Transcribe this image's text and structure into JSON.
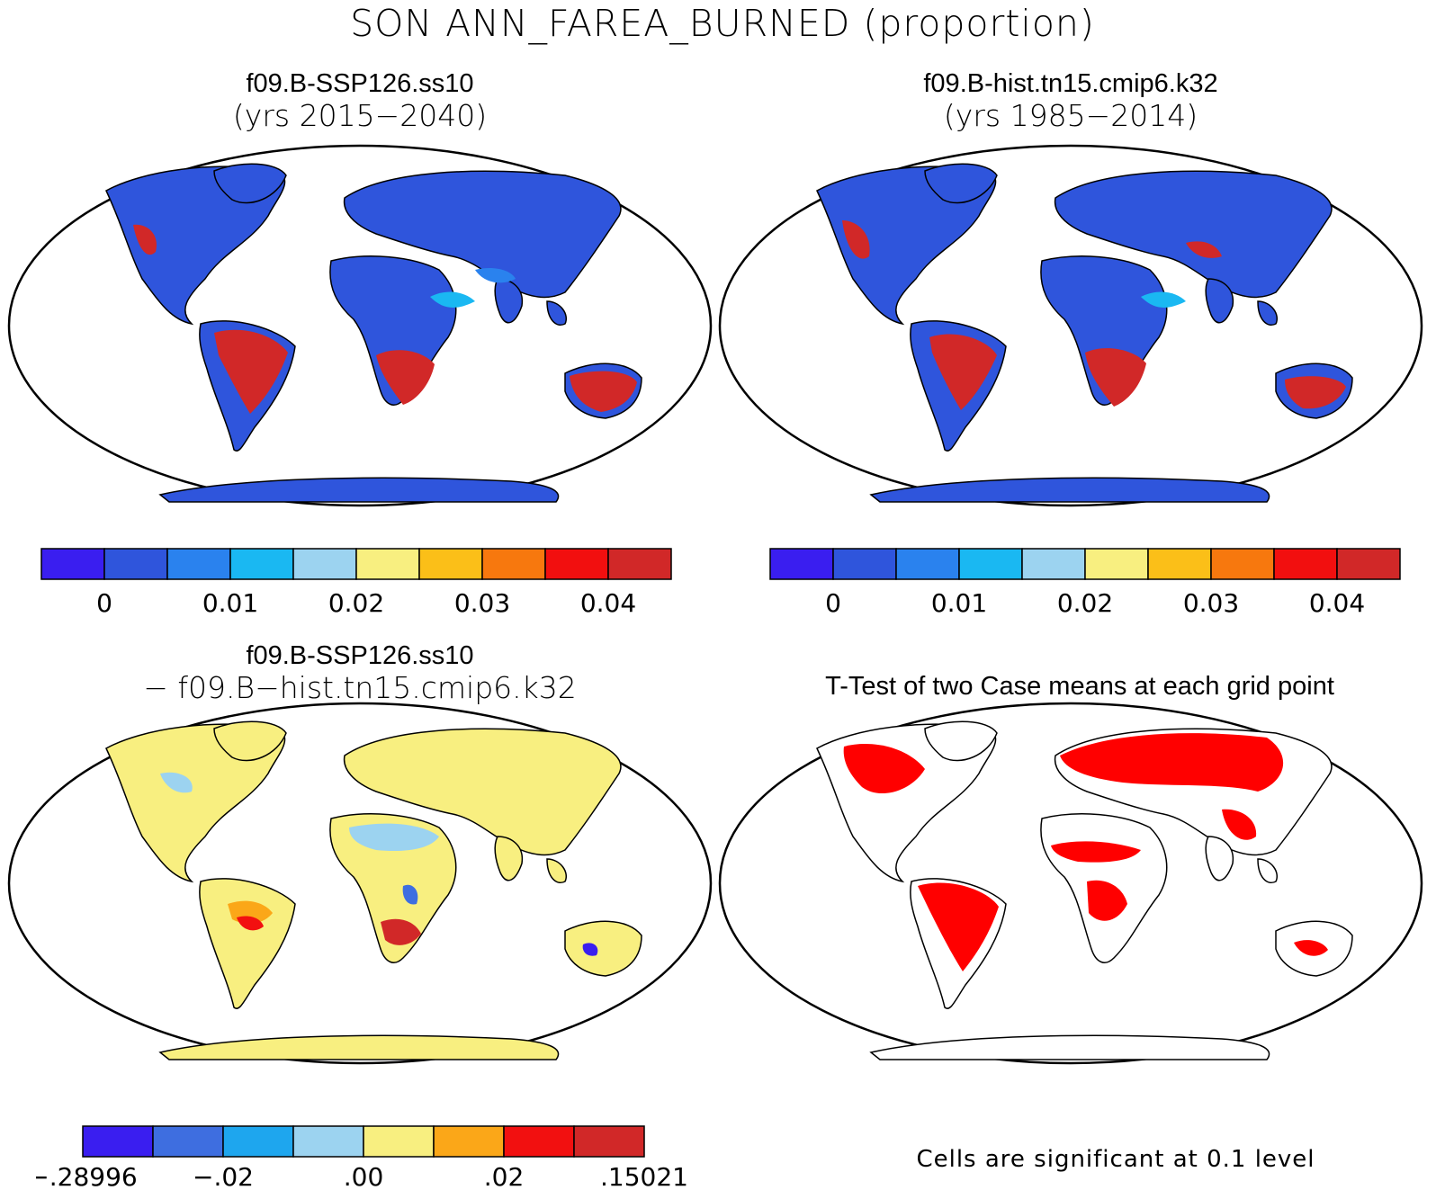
{
  "main_title": "SON ANN_FAREA_BURNED (proportion)",
  "panels": {
    "top_left": {
      "case": "f09.B-SSP126.ss10",
      "years": "(yrs 2015−2040)"
    },
    "top_right": {
      "case": "f09.B-hist.tn15.cmip6.k32",
      "years": "(yrs 1985−2014)"
    },
    "bottom_left": {
      "case": "f09.B-SSP126.ss10",
      "sub": "− f09.B−hist.tn15.cmip6.k32"
    },
    "bottom_right": {
      "title": "T-Test of two Case means at each grid point",
      "note": "Cells are significant at 0.1 level"
    }
  },
  "colorbars": {
    "abs": {
      "colors": [
        "#3a1ef0",
        "#2f55dc",
        "#2a82ee",
        "#1ab8f2",
        "#9cd3f0",
        "#f8ef80",
        "#fbbf18",
        "#f7780e",
        "#f20f0f",
        "#d12828"
      ],
      "labels": [
        "0",
        "0.01",
        "0.02",
        "0.03",
        "0.04"
      ]
    },
    "diff": {
      "colors": [
        "#3a1ef0",
        "#3e6ee0",
        "#1ea6ee",
        "#9cd3f0",
        "#f8ef80",
        "#fba718",
        "#f21010",
        "#d12828"
      ],
      "labels": [
        "−.28996",
        "−.02",
        ".00",
        ".02",
        ".15021"
      ]
    }
  },
  "map_colors": {
    "outline": "#000000",
    "land_low": "#2f55dc",
    "land_mid": "#2a82ee",
    "burn_high": "#d12828",
    "burn_mid": "#f7780e",
    "diff_base": "#f8ef80",
    "diff_neg": "#9cd3f0",
    "sig": "#ff0000"
  }
}
